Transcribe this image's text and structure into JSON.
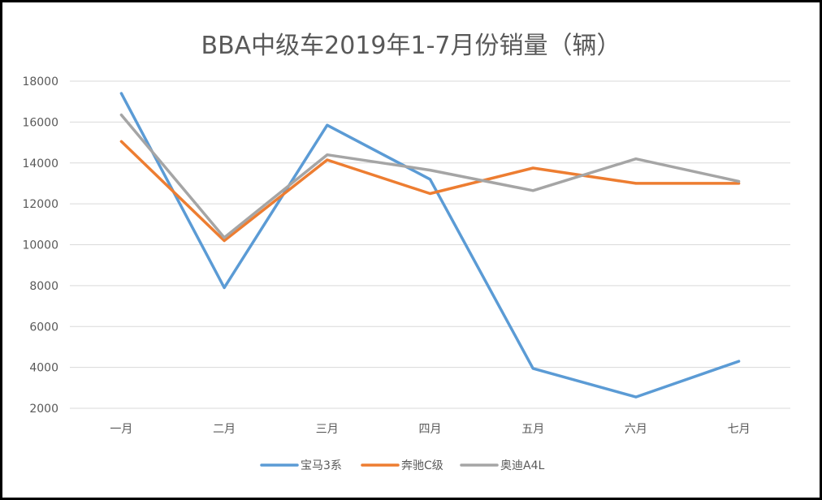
{
  "chart_data": {
    "type": "line",
    "title": "BBA中级车2019年1-7月份销量（辆）",
    "xlabel": "",
    "ylabel": "",
    "categories": [
      "一月",
      "二月",
      "三月",
      "四月",
      "五月",
      "六月",
      "七月"
    ],
    "ylim": [
      2000,
      18000
    ],
    "yticks": [
      2000,
      4000,
      6000,
      8000,
      10000,
      12000,
      14000,
      16000,
      18000
    ],
    "grid": true,
    "legend_position": "bottom",
    "series": [
      {
        "name": "宝马3系",
        "color": "#5b9bd5",
        "values": [
          17400,
          7900,
          15850,
          13200,
          3950,
          2550,
          4300
        ]
      },
      {
        "name": "奔驰C级",
        "color": "#ed7d31",
        "values": [
          15050,
          10200,
          14150,
          12500,
          13750,
          13000,
          13000
        ]
      },
      {
        "name": "奥迪A4L",
        "color": "#a5a5a5",
        "values": [
          16350,
          10350,
          14400,
          13650,
          12650,
          14200,
          13100
        ]
      }
    ]
  }
}
